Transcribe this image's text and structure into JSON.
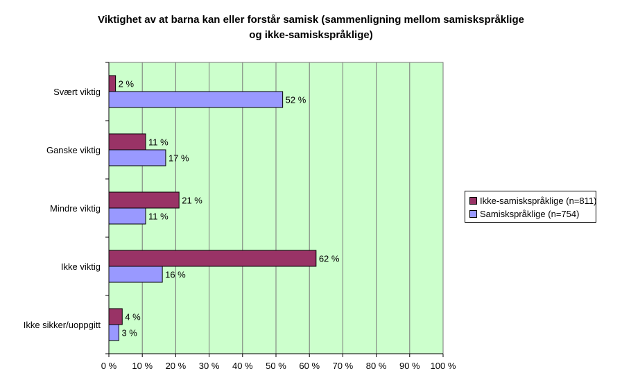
{
  "chart_data": {
    "type": "bar",
    "orientation": "horizontal",
    "title": [
      "Viktighet av at barna kan eller forstår samisk (sammenligning mellom samiskspråklige",
      "og ikke-samiskspråklige)"
    ],
    "categories": [
      "Svært viktig",
      "Ganske viktig",
      "Mindre viktig",
      "Ikke viktig",
      "Ikke sikker/uoppgitt"
    ],
    "series": [
      {
        "name": "Ikke-samiskspråklige (n=811)",
        "values": [
          2,
          11,
          21,
          62,
          4
        ],
        "color": "#993366"
      },
      {
        "name": "Samiskspråklige (n=754)",
        "values": [
          52,
          17,
          11,
          16,
          3
        ],
        "color": "#9999ff"
      }
    ],
    "xlim": [
      0,
      100
    ],
    "x_ticks": [
      0,
      10,
      20,
      30,
      40,
      50,
      60,
      70,
      80,
      90,
      100
    ],
    "tick_suffix": " %",
    "value_suffix": " %",
    "plot_background": "#ccffcc",
    "grid": true,
    "legend_position": "right"
  }
}
